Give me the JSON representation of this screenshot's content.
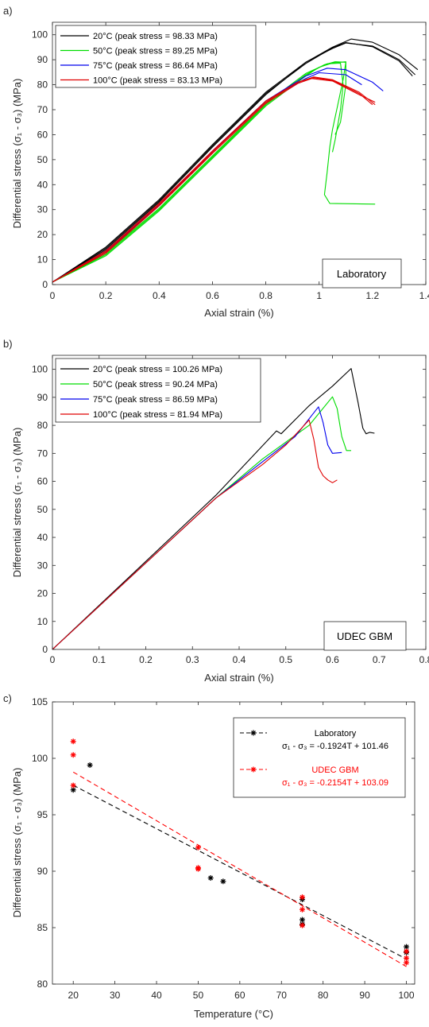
{
  "chart_data": [
    {
      "panel_label": "a)",
      "type": "line",
      "xlabel": "Axial strain (%)",
      "ylabel": "Differential stress (σ₁ - σ₃) (MPa)",
      "xlim": [
        0,
        1.4
      ],
      "ylim": [
        0,
        105
      ],
      "xticks": [
        "0",
        "0.2",
        "0.4",
        "0.6",
        "0.8",
        "1",
        "1.2",
        "1.4"
      ],
      "yticks": [
        "0",
        "10",
        "20",
        "30",
        "40",
        "50",
        "60",
        "70",
        "80",
        "90",
        "100"
      ],
      "legend_position": "top-left",
      "annotation": "Laboratory",
      "series": [
        {
          "name": "20°C (peak stress = 98.33 MPa)",
          "color": "#000000",
          "curves": [
            [
              [
                0,
                1
              ],
              [
                0.2,
                14
              ],
              [
                0.4,
                33
              ],
              [
                0.6,
                55
              ],
              [
                0.8,
                76
              ],
              [
                0.95,
                89
              ],
              [
                1.05,
                95
              ],
              [
                1.12,
                98.3
              ],
              [
                1.2,
                97
              ],
              [
                1.3,
                92
              ],
              [
                1.37,
                86
              ]
            ],
            [
              [
                0,
                1
              ],
              [
                0.2,
                15
              ],
              [
                0.4,
                34
              ],
              [
                0.6,
                56
              ],
              [
                0.8,
                77
              ],
              [
                0.95,
                89
              ],
              [
                1.05,
                94.5
              ],
              [
                1.1,
                96.7
              ],
              [
                1.2,
                95.5
              ],
              [
                1.3,
                90
              ],
              [
                1.36,
                84
              ]
            ],
            [
              [
                0,
                1
              ],
              [
                0.2,
                14.5
              ],
              [
                0.4,
                33.5
              ],
              [
                0.6,
                55.5
              ],
              [
                0.8,
                76.5
              ],
              [
                0.95,
                88.5
              ],
              [
                1.05,
                94.8
              ],
              [
                1.1,
                96.9
              ],
              [
                1.2,
                95.2
              ],
              [
                1.3,
                89.5
              ],
              [
                1.35,
                83.5
              ]
            ]
          ]
        },
        {
          "name": "50°C (peak stress = 89.25 MPa)",
          "color": "#00dd00",
          "curves": [
            [
              [
                0,
                1
              ],
              [
                0.2,
                12
              ],
              [
                0.4,
                30
              ],
              [
                0.6,
                51
              ],
              [
                0.8,
                72
              ],
              [
                0.95,
                84
              ],
              [
                1.02,
                88
              ],
              [
                1.06,
                89.2
              ],
              [
                1.1,
                89
              ],
              [
                1.09,
                82
              ],
              [
                1.07,
                72
              ],
              [
                1.05,
                62
              ],
              [
                1.04,
                55
              ],
              [
                1.03,
                45
              ],
              [
                1.02,
                36
              ],
              [
                1.04,
                32.5
              ],
              [
                1.21,
                32.2
              ]
            ],
            [
              [
                0,
                1
              ],
              [
                0.2,
                12.5
              ],
              [
                0.4,
                30.5
              ],
              [
                0.6,
                51.5
              ],
              [
                0.8,
                72.5
              ],
              [
                0.95,
                84.5
              ],
              [
                1.03,
                88.4
              ],
              [
                1.08,
                88.6
              ],
              [
                1.09,
                80
              ],
              [
                1.08,
                70
              ],
              [
                1.06,
                58
              ],
              [
                1.05,
                53
              ]
            ],
            [
              [
                0,
                1
              ],
              [
                0.2,
                11.5
              ],
              [
                0.4,
                29.5
              ],
              [
                0.6,
                50.5
              ],
              [
                0.8,
                71.5
              ],
              [
                0.95,
                83.5
              ],
              [
                1.0,
                87
              ],
              [
                1.05,
                88.7
              ],
              [
                1.1,
                89.2
              ],
              [
                1.1,
                80
              ],
              [
                1.08,
                65
              ],
              [
                1.06,
                60
              ]
            ]
          ]
        },
        {
          "name": "75°C (peak stress = 86.64 MPa)",
          "color": "#0000ee",
          "curves": [
            [
              [
                0,
                1
              ],
              [
                0.2,
                13
              ],
              [
                0.4,
                31.5
              ],
              [
                0.6,
                53
              ],
              [
                0.8,
                73.5
              ],
              [
                0.95,
                83.5
              ],
              [
                1.03,
                86.6
              ],
              [
                1.1,
                86
              ],
              [
                1.2,
                81
              ],
              [
                1.24,
                77.5
              ]
            ],
            [
              [
                0,
                1
              ],
              [
                0.2,
                13.5
              ],
              [
                0.4,
                32
              ],
              [
                0.6,
                53.5
              ],
              [
                0.8,
                73.5
              ],
              [
                0.95,
                82.5
              ],
              [
                1.0,
                84.8
              ],
              [
                1.1,
                84
              ],
              [
                1.16,
                80
              ]
            ]
          ]
        },
        {
          "name": "100°C (peak stress = 83.13 MPa)",
          "color": "#e00000",
          "curves": [
            [
              [
                0,
                1
              ],
              [
                0.2,
                13
              ],
              [
                0.4,
                32
              ],
              [
                0.6,
                53
              ],
              [
                0.8,
                73
              ],
              [
                0.92,
                81
              ],
              [
                0.98,
                83.1
              ],
              [
                1.05,
                82
              ],
              [
                1.15,
                77
              ],
              [
                1.21,
                72
              ]
            ],
            [
              [
                0,
                1
              ],
              [
                0.2,
                13.5
              ],
              [
                0.4,
                32.5
              ],
              [
                0.6,
                53.5
              ],
              [
                0.8,
                73.5
              ],
              [
                0.92,
                81
              ],
              [
                0.97,
                82.5
              ],
              [
                1.05,
                81.5
              ],
              [
                1.15,
                76
              ],
              [
                1.21,
                73
              ]
            ],
            [
              [
                0,
                1
              ],
              [
                0.2,
                12.5
              ],
              [
                0.4,
                31.5
              ],
              [
                0.6,
                52.5
              ],
              [
                0.8,
                72.5
              ],
              [
                0.92,
                80.5
              ],
              [
                0.98,
                82.8
              ],
              [
                1.05,
                81.8
              ],
              [
                1.15,
                76.5
              ],
              [
                1.2,
                72
              ]
            ]
          ]
        }
      ]
    },
    {
      "panel_label": "b)",
      "type": "line",
      "xlabel": "Axial strain (%)",
      "ylabel": "Differential stress (σ₁ - σ₃) (MPa)",
      "xlim": [
        0,
        0.8
      ],
      "ylim": [
        0,
        105
      ],
      "xticks": [
        "0",
        "0.1",
        "0.2",
        "0.3",
        "0.4",
        "0.5",
        "0.6",
        "0.7",
        "0.8"
      ],
      "yticks": [
        "0",
        "10",
        "20",
        "30",
        "40",
        "50",
        "60",
        "70",
        "80",
        "90",
        "100"
      ],
      "legend_position": "top-left",
      "annotation": "UDEC GBM",
      "series": [
        {
          "name": "20°C (peak stress = 100.26 MPa)",
          "color": "#000000",
          "curves": [
            [
              [
                0,
                0
              ],
              [
                0.35,
                55
              ],
              [
                0.48,
                78
              ],
              [
                0.49,
                77
              ],
              [
                0.55,
                87
              ],
              [
                0.6,
                94
              ],
              [
                0.64,
                100.3
              ],
              [
                0.655,
                88
              ],
              [
                0.665,
                79
              ],
              [
                0.672,
                77
              ],
              [
                0.68,
                77.5
              ],
              [
                0.69,
                77.2
              ]
            ]
          ]
        },
        {
          "name": "50°C (peak stress = 90.24 MPa)",
          "color": "#00dd00",
          "curves": [
            [
              [
                0,
                0
              ],
              [
                0.35,
                54
              ],
              [
                0.45,
                68
              ],
              [
                0.55,
                80
              ],
              [
                0.6,
                90.2
              ],
              [
                0.61,
                86
              ],
              [
                0.62,
                76
              ],
              [
                0.63,
                71
              ],
              [
                0.64,
                71
              ]
            ]
          ]
        },
        {
          "name": "75°C (peak stress = 86.59 MPa)",
          "color": "#0000ee",
          "curves": [
            [
              [
                0,
                0
              ],
              [
                0.35,
                54
              ],
              [
                0.45,
                67
              ],
              [
                0.52,
                76
              ],
              [
                0.57,
                86.6
              ],
              [
                0.58,
                81
              ],
              [
                0.59,
                73
              ],
              [
                0.6,
                70
              ],
              [
                0.62,
                70.3
              ]
            ]
          ]
        },
        {
          "name": "100°C (peak stress = 81.94 MPa)",
          "color": "#e00000",
          "curves": [
            [
              [
                0,
                0
              ],
              [
                0.35,
                54
              ],
              [
                0.45,
                66
              ],
              [
                0.5,
                73
              ],
              [
                0.55,
                81.9
              ],
              [
                0.56,
                75
              ],
              [
                0.57,
                65
              ],
              [
                0.58,
                62
              ],
              [
                0.59,
                60.5
              ],
              [
                0.6,
                59.5
              ],
              [
                0.61,
                60.5
              ]
            ]
          ]
        }
      ]
    },
    {
      "panel_label": "c)",
      "type": "scatter",
      "xlabel": "Temperature (°C)",
      "ylabel": "Differential stress (σ₁ - σ₃) (MPa)",
      "xlim": [
        15,
        102
      ],
      "ylim": [
        80,
        105
      ],
      "xticks": [
        "20",
        "30",
        "40",
        "50",
        "60",
        "70",
        "80",
        "90",
        "100"
      ],
      "yticks": [
        "80",
        "85",
        "90",
        "95",
        "100",
        "105"
      ],
      "legend_position": "top-right",
      "series": [
        {
          "name": "Laboratory",
          "equation": "σ₁ - σ₃ = -0.1924T + 101.46",
          "color": "#000000",
          "fit": {
            "slope": -0.1924,
            "intercept": 101.46
          },
          "points": [
            [
              20,
              97.2
            ],
            [
              24,
              99.4
            ],
            [
              53,
              89.4
            ],
            [
              56,
              89.1
            ],
            [
              75,
              87.5
            ],
            [
              75,
              85.7
            ],
            [
              75,
              85.3
            ],
            [
              100,
              83.3
            ],
            [
              100,
              82.8
            ]
          ]
        },
        {
          "name": "UDEC GBM",
          "equation": "σ₁ - σ₃ = -0.2154T + 103.09",
          "color": "#ff0000",
          "fit": {
            "slope": -0.2154,
            "intercept": 103.09
          },
          "points": [
            [
              20,
              101.5
            ],
            [
              20,
              100.3
            ],
            [
              20,
              97.6
            ],
            [
              50,
              92.1
            ],
            [
              50,
              90.3
            ],
            [
              50,
              90.2
            ],
            [
              75,
              87.7
            ],
            [
              75,
              86.6
            ],
            [
              75,
              85.2
            ],
            [
              100,
              82.9
            ],
            [
              100,
              82.3
            ],
            [
              100,
              81.9
            ]
          ]
        }
      ]
    }
  ]
}
